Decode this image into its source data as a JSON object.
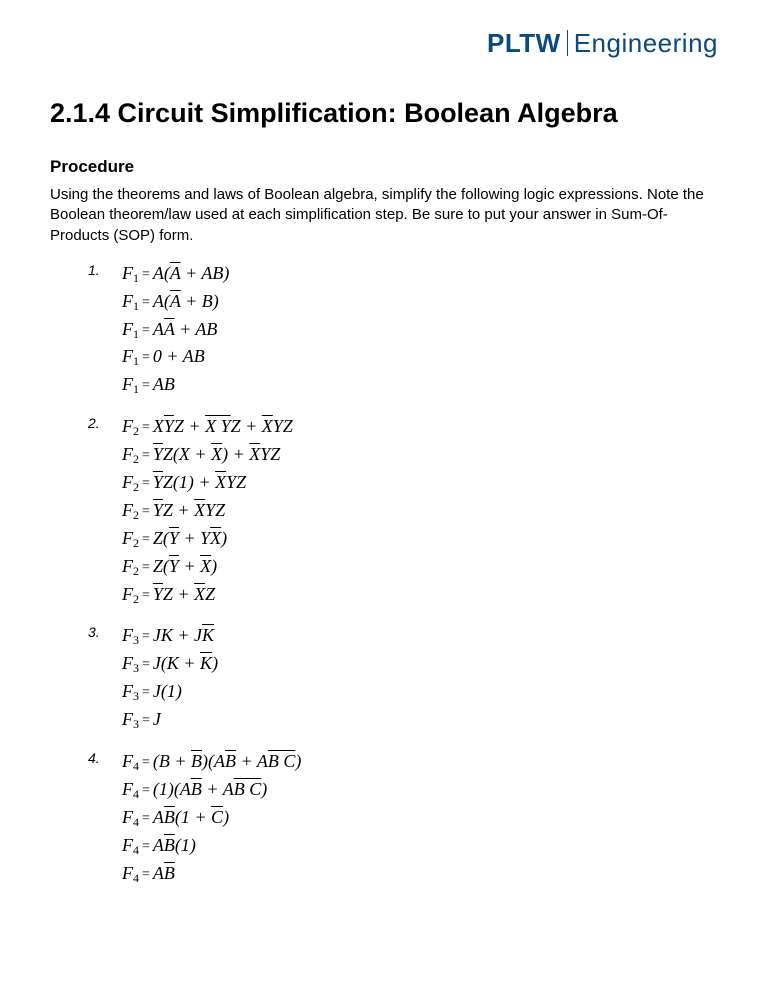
{
  "logo": {
    "bold": "PLTW",
    "light": "Engineering",
    "color": "#0b4a7f"
  },
  "title": "2.1.4 Circuit Simplification: Boolean Algebra",
  "section": "Procedure",
  "intro": "Using the theorems and laws of Boolean algebra, simplify the following logic expressions. Note the Boolean theorem/law used at each simplification step. Be sure to put your answer in Sum-Of-Products (SOP) form.",
  "problems": [
    {
      "num": "1.",
      "lines": [
        [
          {
            "t": "F"
          },
          {
            "t": "1",
            "sub": true
          },
          {
            "t": " ",
            "eq": "="
          },
          {
            "t": "A("
          },
          {
            "t": "A",
            "ov": true
          },
          {
            "t": " + AB)"
          }
        ],
        [
          {
            "t": "F"
          },
          {
            "t": "1",
            "sub": true
          },
          {
            "t": " ",
            "eq": "="
          },
          {
            "t": "A("
          },
          {
            "t": "A",
            "ov": true
          },
          {
            "t": " + B)"
          }
        ],
        [
          {
            "t": "F"
          },
          {
            "t": "1",
            "sub": true
          },
          {
            "t": " ",
            "eq": "="
          },
          {
            "t": "A"
          },
          {
            "t": "A",
            "ov": true
          },
          {
            "t": " + AB"
          }
        ],
        [
          {
            "t": "F"
          },
          {
            "t": "1",
            "sub": true
          },
          {
            "t": " ",
            "eq": "="
          },
          {
            "t": "0 + AB"
          }
        ],
        [
          {
            "t": "F"
          },
          {
            "t": "1",
            "sub": true
          },
          {
            "t": " ",
            "eq": "="
          },
          {
            "t": "AB"
          }
        ]
      ]
    },
    {
      "num": "2.",
      "lines": [
        [
          {
            "t": "F"
          },
          {
            "t": "2",
            "sub": true
          },
          {
            "t": " ",
            "eq": "="
          },
          {
            "t": "X"
          },
          {
            "t": "Y",
            "ov": true
          },
          {
            "t": "Z + "
          },
          {
            "t": "X Y",
            "ov": true
          },
          {
            "t": "Z + "
          },
          {
            "t": "X",
            "ov": true
          },
          {
            "t": "YZ"
          }
        ],
        [
          {
            "t": "F"
          },
          {
            "t": "2",
            "sub": true
          },
          {
            "t": " ",
            "eq": "="
          },
          {
            "t": "Y",
            "ov": true
          },
          {
            "t": "Z(X + "
          },
          {
            "t": "X",
            "ov": true
          },
          {
            "t": ") + "
          },
          {
            "t": "X",
            "ov": true
          },
          {
            "t": "YZ"
          }
        ],
        [
          {
            "t": "F"
          },
          {
            "t": "2",
            "sub": true
          },
          {
            "t": " ",
            "eq": "="
          },
          {
            "t": "Y",
            "ov": true
          },
          {
            "t": "Z(1) + "
          },
          {
            "t": "X",
            "ov": true
          },
          {
            "t": "YZ"
          }
        ],
        [
          {
            "t": "F"
          },
          {
            "t": "2",
            "sub": true
          },
          {
            "t": " ",
            "eq": "="
          },
          {
            "t": "Y",
            "ov": true
          },
          {
            "t": "Z + "
          },
          {
            "t": "X",
            "ov": true
          },
          {
            "t": "YZ"
          }
        ],
        [
          {
            "t": "F"
          },
          {
            "t": "2",
            "sub": true
          },
          {
            "t": " ",
            "eq": "="
          },
          {
            "t": "Z("
          },
          {
            "t": "Y",
            "ov": true
          },
          {
            "t": " + Y"
          },
          {
            "t": "X",
            "ov": true
          },
          {
            "t": ")"
          }
        ],
        [
          {
            "t": "F"
          },
          {
            "t": "2",
            "sub": true
          },
          {
            "t": " ",
            "eq": "="
          },
          {
            "t": "Z("
          },
          {
            "t": "Y",
            "ov": true
          },
          {
            "t": " + "
          },
          {
            "t": "X",
            "ov": true
          },
          {
            "t": ")"
          }
        ],
        [
          {
            "t": "F"
          },
          {
            "t": "2",
            "sub": true
          },
          {
            "t": " ",
            "eq": "="
          },
          {
            "t": "Y",
            "ov": true
          },
          {
            "t": "Z + "
          },
          {
            "t": "X",
            "ov": true
          },
          {
            "t": "Z"
          }
        ]
      ]
    },
    {
      "num": "3.",
      "lines": [
        [
          {
            "t": "F"
          },
          {
            "t": "3",
            "sub": true
          },
          {
            "t": " ",
            "eq": "="
          },
          {
            "t": "JK + J"
          },
          {
            "t": "K",
            "ov": true
          }
        ],
        [
          {
            "t": "F"
          },
          {
            "t": "3",
            "sub": true
          },
          {
            "t": " ",
            "eq": "="
          },
          {
            "t": "J(K + "
          },
          {
            "t": "K",
            "ov": true
          },
          {
            "t": ")"
          }
        ],
        [
          {
            "t": "F"
          },
          {
            "t": "3",
            "sub": true
          },
          {
            "t": " ",
            "eq": "="
          },
          {
            "t": "J(1)"
          }
        ],
        [
          {
            "t": "F"
          },
          {
            "t": "3",
            "sub": true
          },
          {
            "t": " ",
            "eq": "="
          },
          {
            "t": "J"
          }
        ]
      ]
    },
    {
      "num": "4.",
      "lines": [
        [
          {
            "t": "F"
          },
          {
            "t": "4",
            "sub": true
          },
          {
            "t": " ",
            "eq": "="
          },
          {
            "t": "(B + "
          },
          {
            "t": "B",
            "ov": true
          },
          {
            "t": ")(A"
          },
          {
            "t": "B",
            "ov": true
          },
          {
            "t": " + A"
          },
          {
            "t": "B C",
            "ov": true
          },
          {
            "t": ")"
          }
        ],
        [
          {
            "t": "F"
          },
          {
            "t": "4",
            "sub": true
          },
          {
            "t": " ",
            "eq": "="
          },
          {
            "t": "(1)(A"
          },
          {
            "t": "B",
            "ov": true
          },
          {
            "t": " + A"
          },
          {
            "t": "B C",
            "ov": true
          },
          {
            "t": ")"
          }
        ],
        [
          {
            "t": "F"
          },
          {
            "t": "4",
            "sub": true
          },
          {
            "t": " ",
            "eq": "="
          },
          {
            "t": "A"
          },
          {
            "t": "B",
            "ov": true
          },
          {
            "t": "(1 + "
          },
          {
            "t": "C",
            "ov": true
          },
          {
            "t": ")"
          }
        ],
        [
          {
            "t": "F"
          },
          {
            "t": "4",
            "sub": true
          },
          {
            "t": " ",
            "eq": "="
          },
          {
            "t": "A"
          },
          {
            "t": "B",
            "ov": true
          },
          {
            "t": "(1)"
          }
        ],
        [
          {
            "t": "F"
          },
          {
            "t": "4",
            "sub": true
          },
          {
            "t": " ",
            "eq": "="
          },
          {
            "t": "A"
          },
          {
            "t": "B",
            "ov": true
          }
        ]
      ]
    }
  ]
}
